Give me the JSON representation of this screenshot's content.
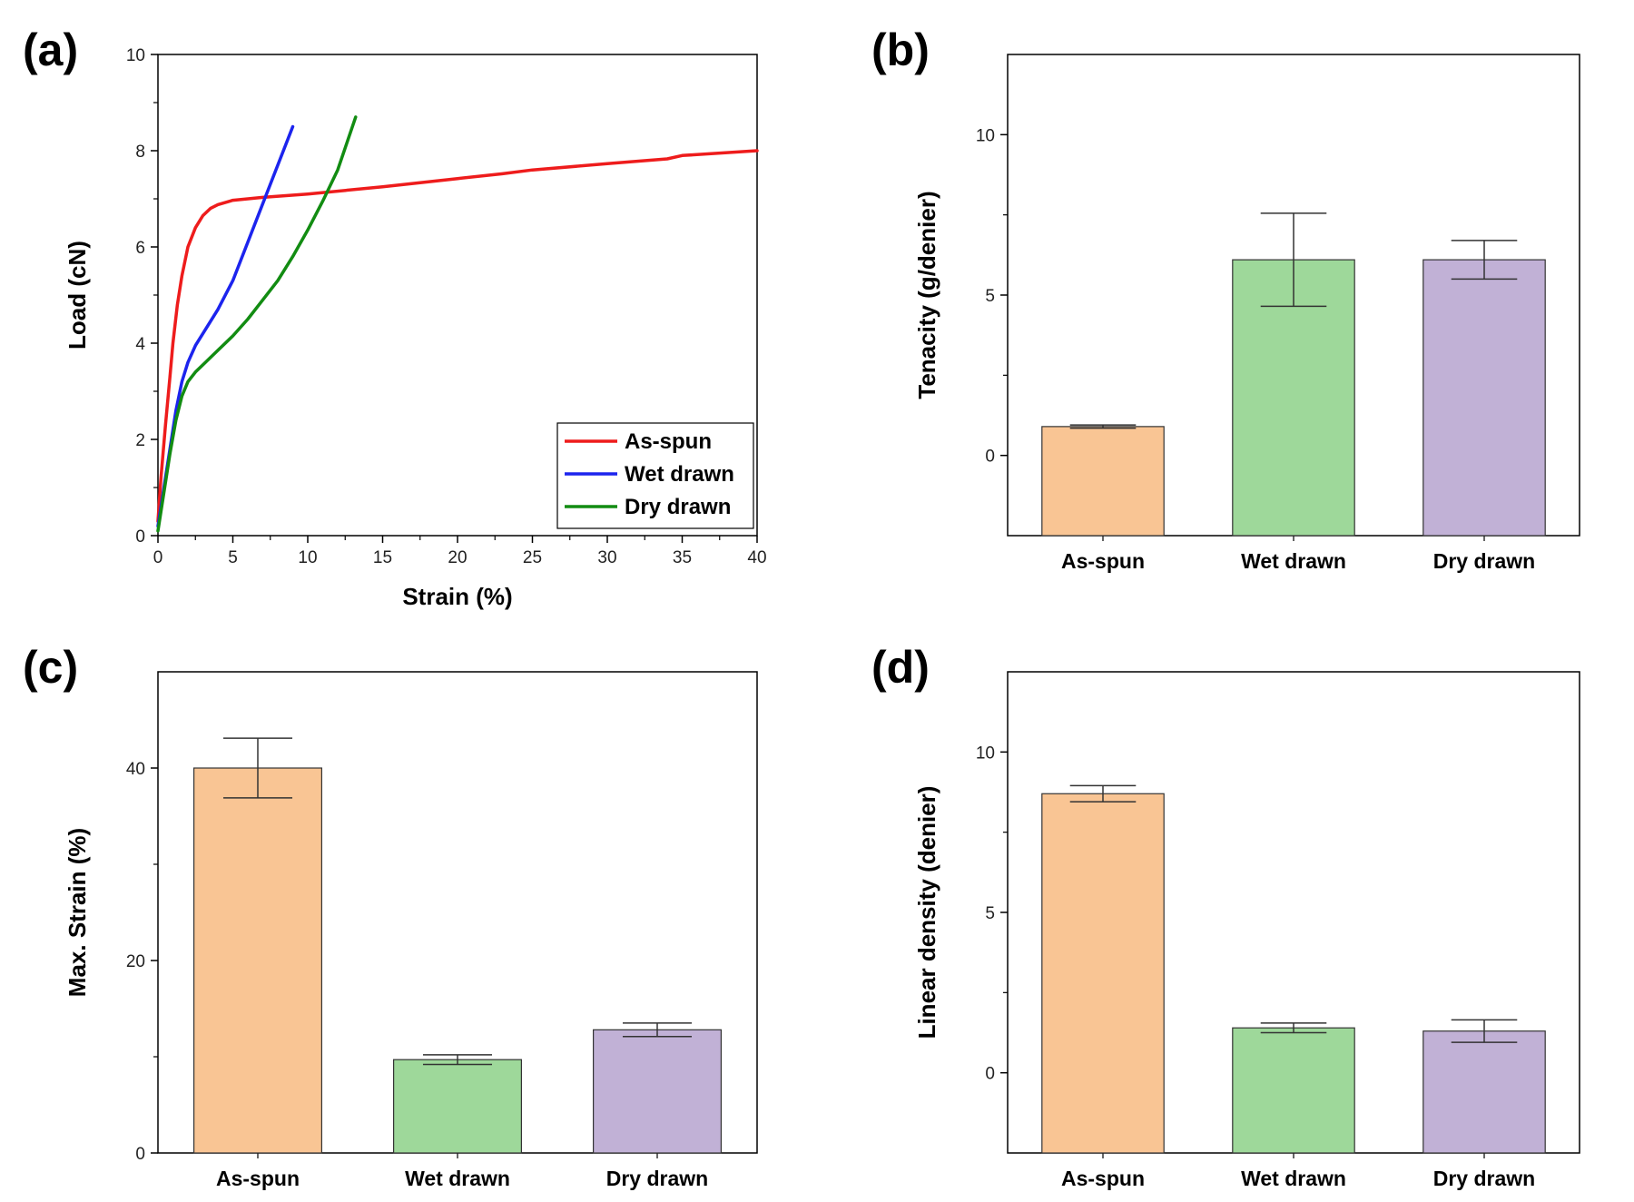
{
  "chart_data": [
    {
      "panel": "(a)",
      "type": "line",
      "xlabel": "Strain (%)",
      "ylabel": "Load (cN)",
      "xlim": [
        0,
        40
      ],
      "ylim": [
        0,
        10
      ],
      "xticks": [
        0,
        5,
        10,
        15,
        20,
        25,
        30,
        35,
        40
      ],
      "yticks": [
        0,
        2,
        4,
        6,
        8,
        10
      ],
      "legend_position": "bottom-right",
      "series": [
        {
          "name": "As-spun",
          "color": "#ee1c1c",
          "x": [
            0,
            0.2,
            0.5,
            0.8,
            1.0,
            1.3,
            1.6,
            2.0,
            2.5,
            3.0,
            3.5,
            4.0,
            5.0,
            7.0,
            10,
            15,
            20,
            23,
            25,
            30,
            34,
            35,
            40
          ],
          "y": [
            0.3,
            1.2,
            2.3,
            3.3,
            4.0,
            4.8,
            5.4,
            6.0,
            6.4,
            6.65,
            6.8,
            6.88,
            6.97,
            7.03,
            7.1,
            7.25,
            7.42,
            7.52,
            7.6,
            7.73,
            7.83,
            7.9,
            8.0
          ]
        },
        {
          "name": "Wet drawn",
          "color": "#1c24ee",
          "x": [
            0,
            0.4,
            0.8,
            1.2,
            1.6,
            2.0,
            2.5,
            3.0,
            4.0,
            5.0,
            6.0,
            7.0,
            8.0,
            9.0
          ],
          "y": [
            0.2,
            1.0,
            1.8,
            2.6,
            3.2,
            3.6,
            3.95,
            4.2,
            4.7,
            5.3,
            6.1,
            6.9,
            7.7,
            8.5
          ]
        },
        {
          "name": "Dry drawn",
          "color": "#128c12",
          "x": [
            0,
            0.4,
            0.8,
            1.2,
            1.6,
            2.0,
            2.5,
            3.0,
            4.0,
            5.0,
            6.0,
            7.0,
            8.0,
            9.0,
            10.0,
            11.0,
            12.0,
            13.2
          ],
          "y": [
            0.1,
            0.9,
            1.7,
            2.4,
            2.9,
            3.2,
            3.4,
            3.55,
            3.85,
            4.15,
            4.5,
            4.9,
            5.3,
            5.8,
            6.35,
            6.95,
            7.6,
            8.7
          ]
        }
      ]
    },
    {
      "panel": "(b)",
      "type": "bar",
      "ylabel": "Tenacity (g/denier)",
      "categories": [
        "As-spun",
        "Wet drawn",
        "Dry drawn"
      ],
      "values": [
        0.9,
        6.1,
        6.1
      ],
      "errors": [
        0.05,
        1.45,
        0.6
      ],
      "colors": [
        "#f9c594",
        "#9ed89a",
        "#c1b1d6"
      ],
      "ylim": [
        -2.5,
        12.5
      ],
      "yticks": [
        0,
        5,
        10
      ]
    },
    {
      "panel": "(c)",
      "type": "bar",
      "ylabel": "Max. Strain (%)",
      "categories": [
        "As-spun",
        "Wet drawn",
        "Dry drawn"
      ],
      "values": [
        40,
        9.7,
        12.8
      ],
      "errors": [
        3.1,
        0.5,
        0.7
      ],
      "colors": [
        "#f9c594",
        "#9ed89a",
        "#c1b1d6"
      ],
      "ylim": [
        0,
        50
      ],
      "yticks": [
        0,
        20,
        40
      ]
    },
    {
      "panel": "(d)",
      "type": "bar",
      "ylabel": "Linear density (denier)",
      "categories": [
        "As-spun",
        "Wet drawn",
        "Dry drawn"
      ],
      "values": [
        8.7,
        1.4,
        1.3
      ],
      "errors": [
        0.25,
        0.15,
        0.35
      ],
      "colors": [
        "#f9c594",
        "#9ed89a",
        "#c1b1d6"
      ],
      "ylim": [
        -2.5,
        12.5
      ],
      "yticks": [
        0,
        5,
        10
      ]
    }
  ]
}
